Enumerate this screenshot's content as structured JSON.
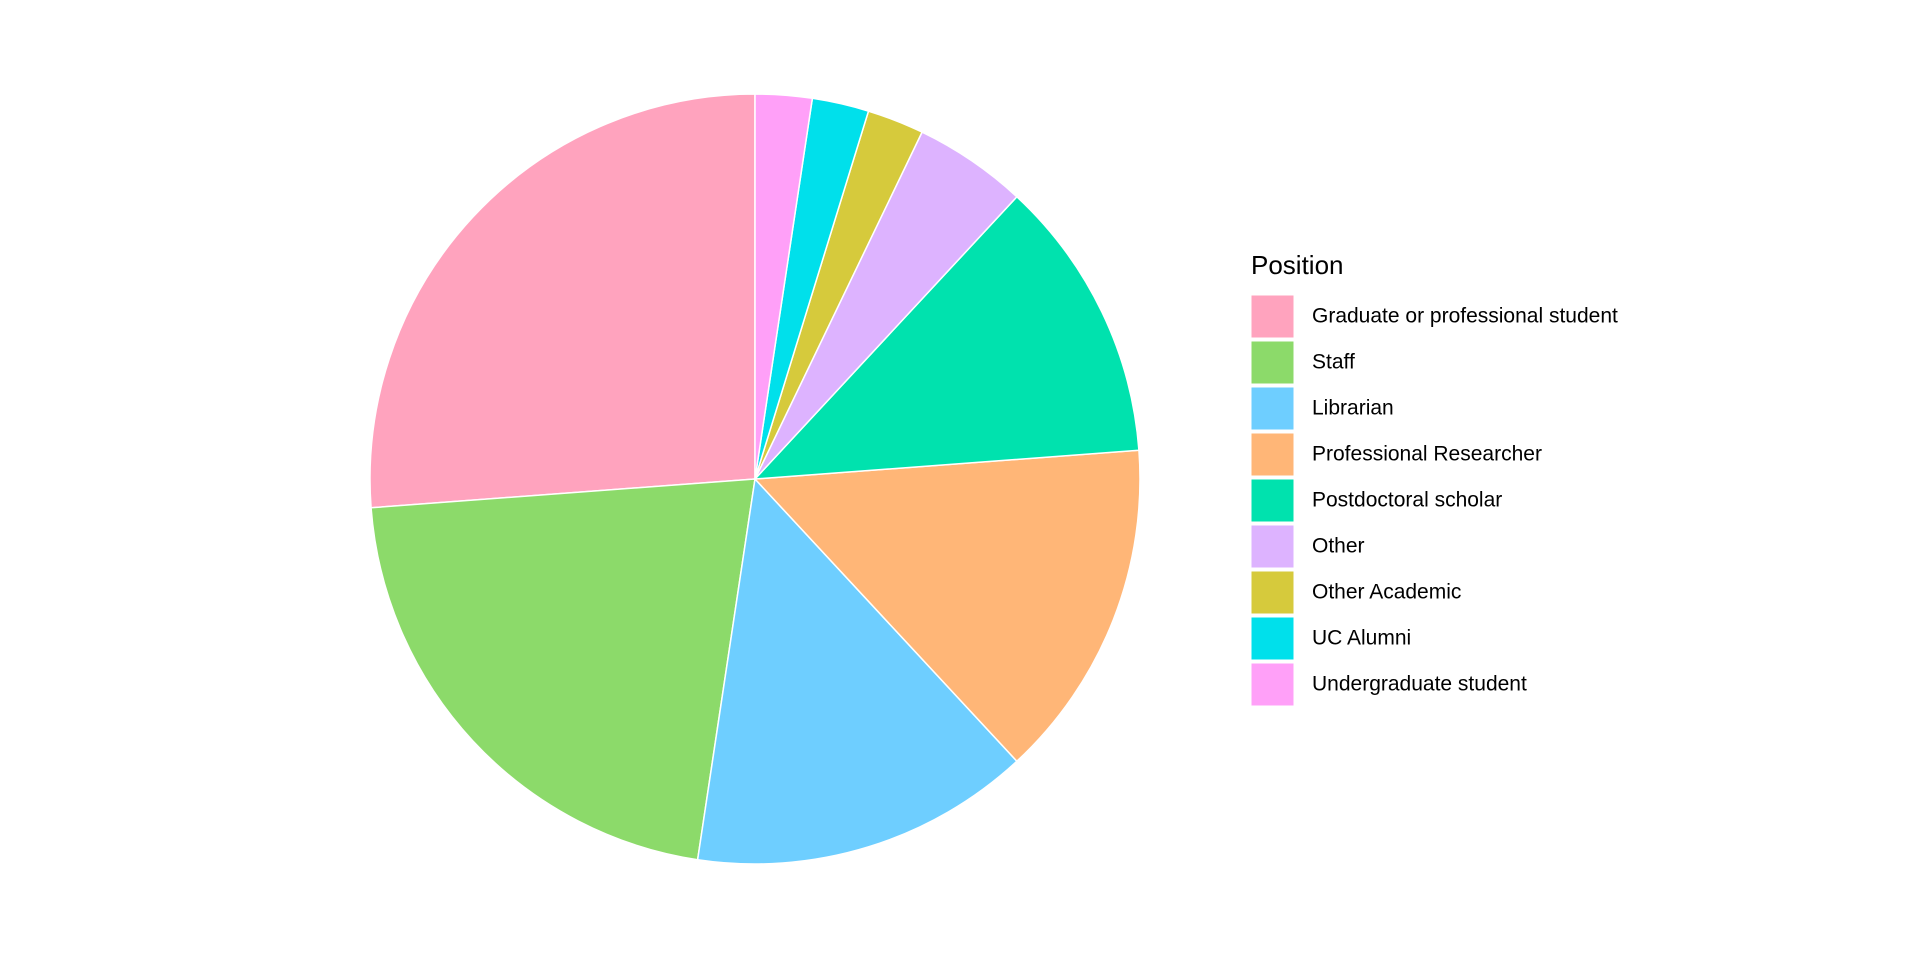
{
  "chart_data": {
    "type": "pie",
    "legend_title": "Position",
    "legend_position": "right",
    "direction": "counterclockwise",
    "categories": [
      "Graduate or professional student",
      "Staff",
      "Librarian",
      "Professional Researcher",
      "Postdoctoral scholar",
      "Other",
      "Other Academic",
      "UC Alumni",
      "Undergraduate student"
    ],
    "values": [
      11,
      9,
      6,
      6,
      5,
      2,
      1,
      1,
      1
    ],
    "colors": [
      "#FFA3BE",
      "#8CDA6A",
      "#6ECEFF",
      "#FFB677",
      "#00E2AE",
      "#DDB3FF",
      "#D6CA3C",
      "#00E0EB",
      "#FFA0F8"
    ]
  }
}
